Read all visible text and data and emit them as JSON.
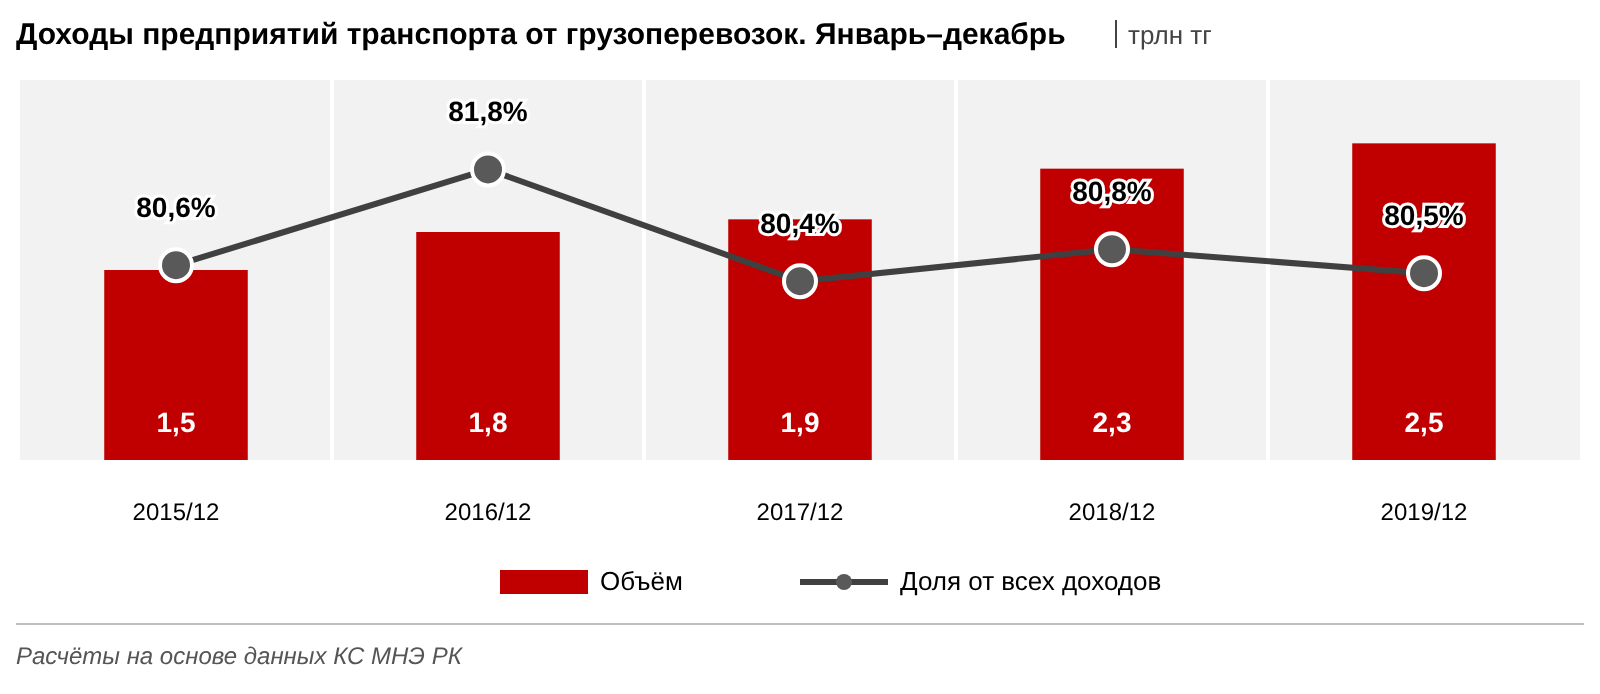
{
  "chart_data": {
    "type": "bar",
    "title": "Доходы предприятий транспорта от грузоперевозок. Январь–декабрь",
    "subtitle": "трлн тг",
    "categories": [
      "2015/12",
      "2016/12",
      "2017/12",
      "2018/12",
      "2019/12"
    ],
    "series": [
      {
        "name": "Объём",
        "color": "#c00000",
        "values": [
          1.5,
          1.8,
          1.9,
          2.3,
          2.5
        ],
        "value_labels": [
          "1,5",
          "1,8",
          "1,9",
          "2,3",
          "2,5"
        ]
      },
      {
        "name": "Доля от всех доходов",
        "type": "line",
        "axis": "y2",
        "color": "#404040",
        "values": [
          80.6,
          81.8,
          80.4,
          80.8,
          80.5
        ],
        "value_labels": [
          "80,6%",
          "81,8%",
          "80,4%",
          "80,8%",
          "80,5%"
        ]
      }
    ],
    "tick_labels": "x",
    "legend": "bottom",
    "marker": "circle",
    "line_style": "solid",
    "data_labels": true,
    "annotations": [
      "Расчёты на основе данных КС МНЭ РК"
    ]
  }
}
